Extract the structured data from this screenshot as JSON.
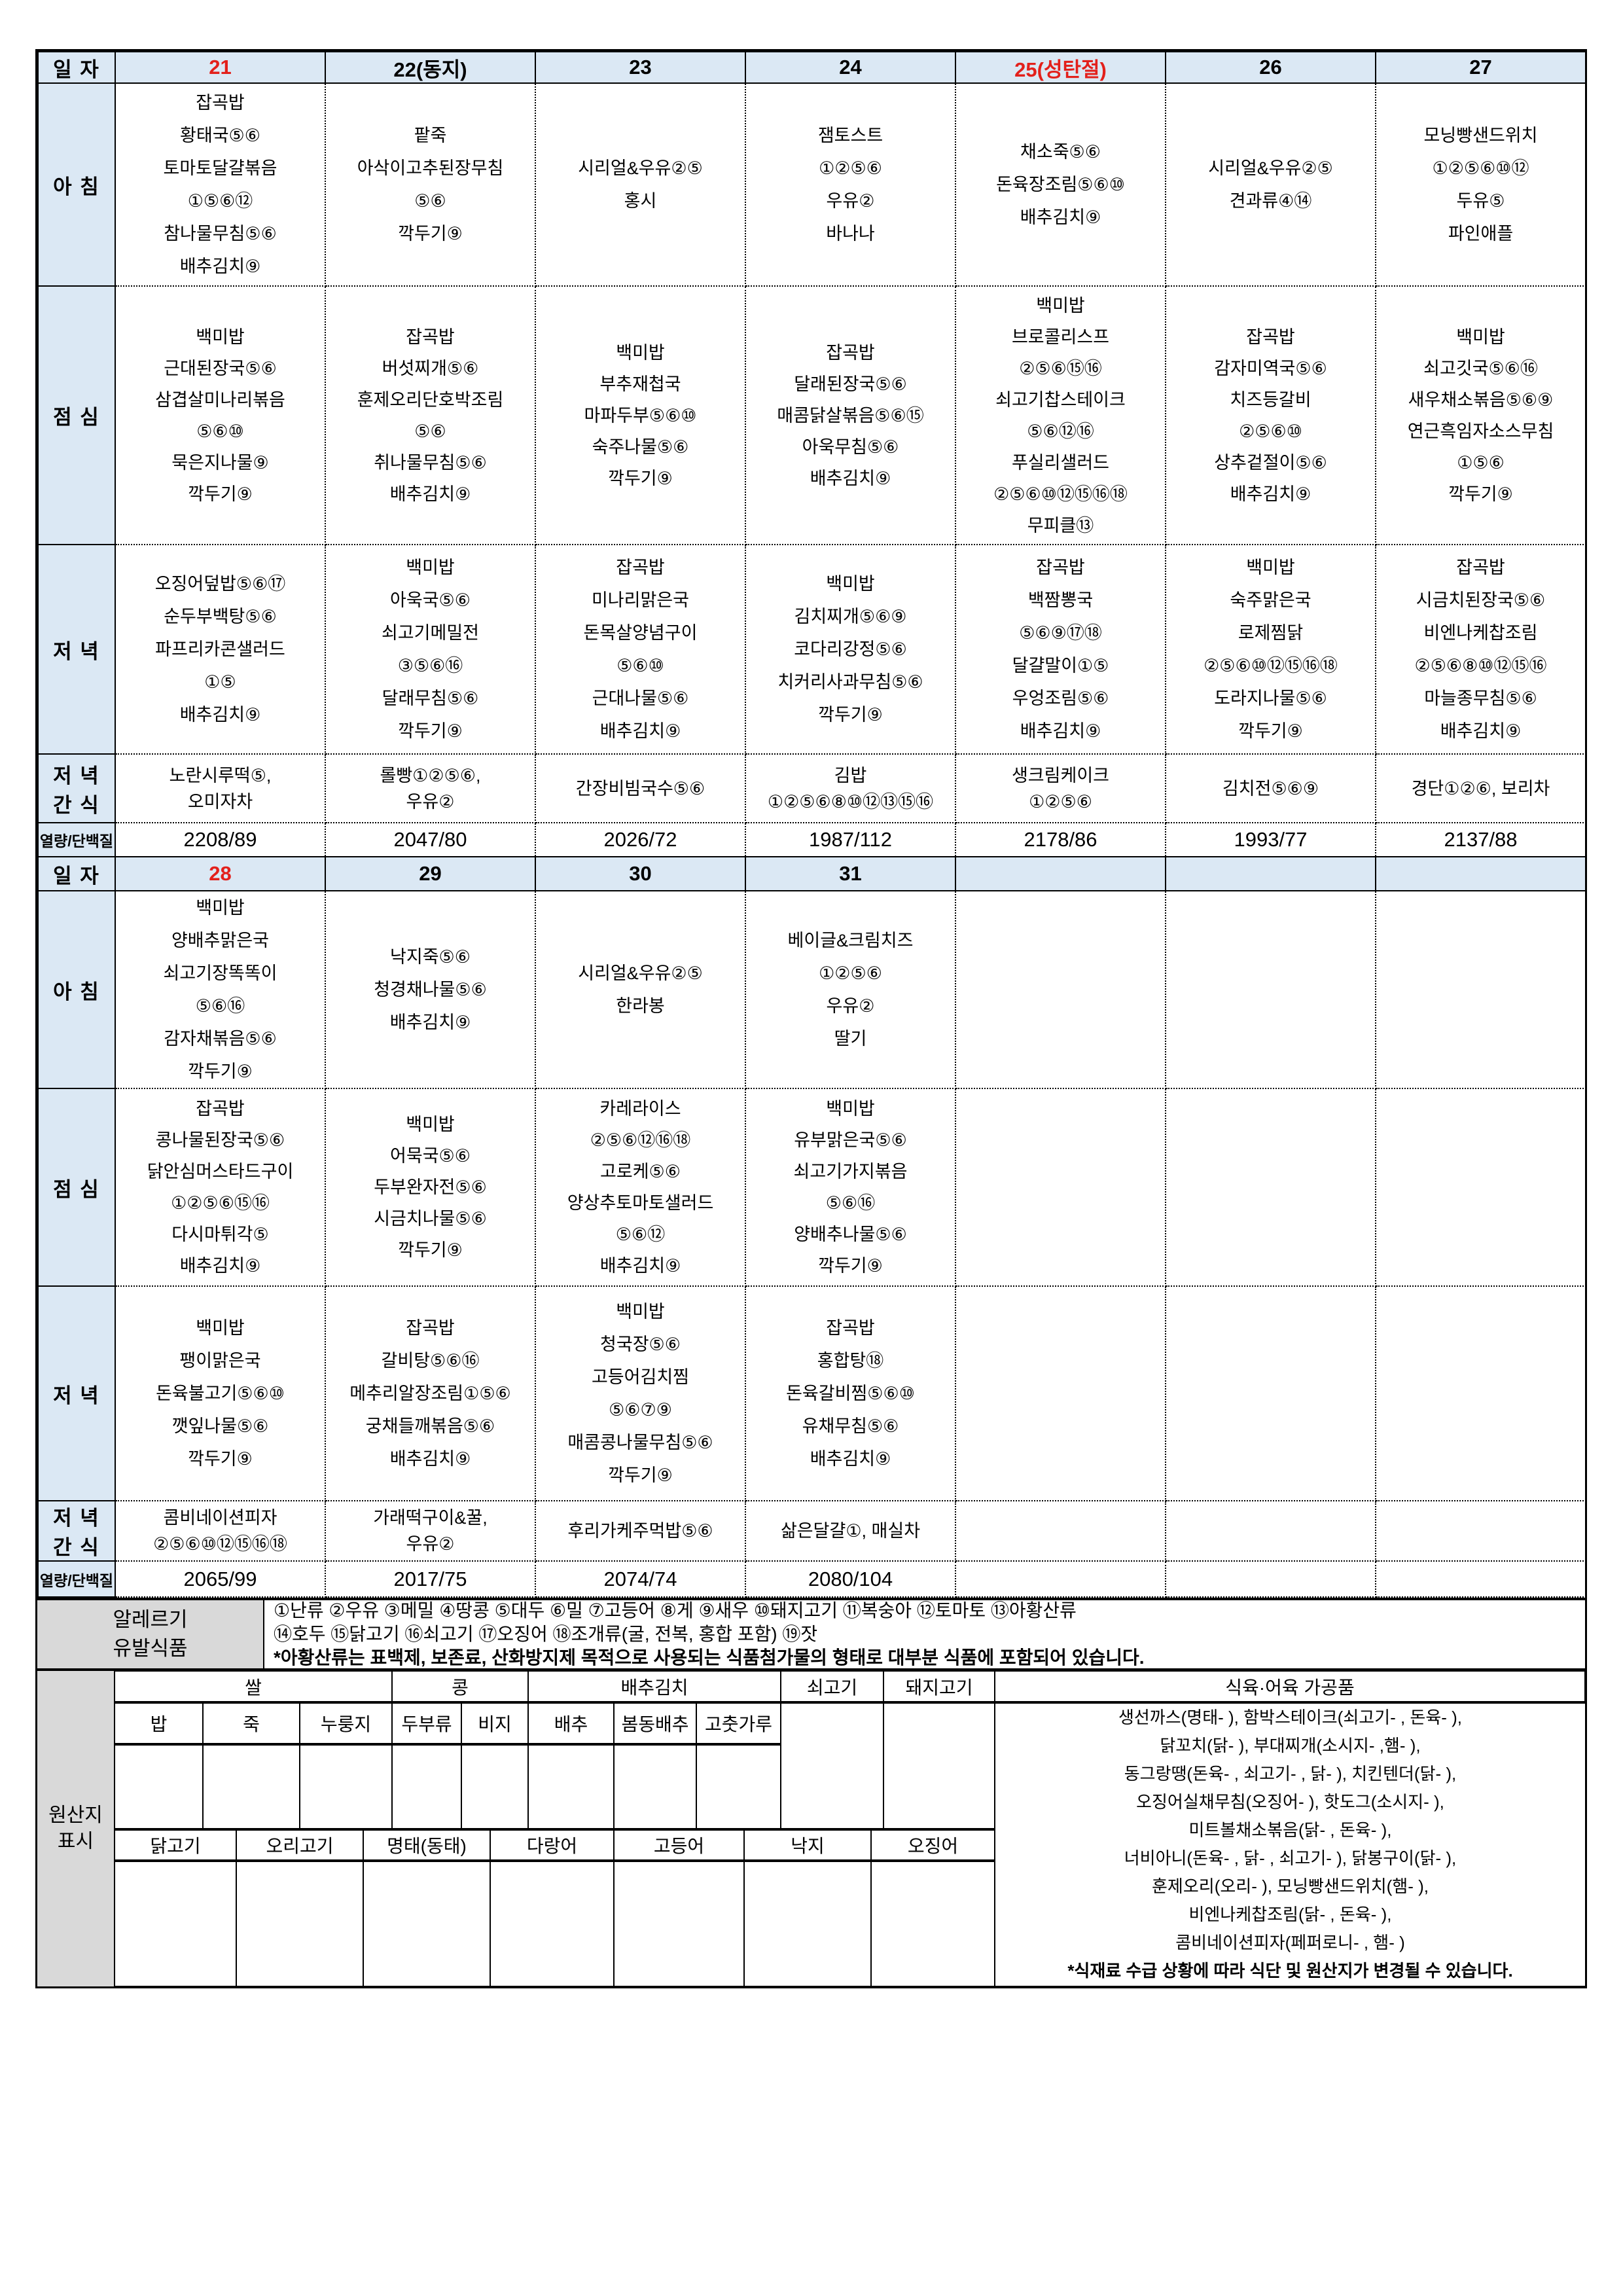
{
  "colors": {
    "header_blue": "#dbe8f4",
    "label_gray": "#d9d9d9",
    "accent_red": "#e3201b"
  },
  "row_labels": {
    "date": "일 자",
    "breakfast": "아 침",
    "lunch": "점 심",
    "dinner": "저 녁",
    "snack": [
      "저 녁",
      "간 식"
    ],
    "nutrition": "열량/단백질"
  },
  "weeks": [
    {
      "dates": [
        {
          "label": "21",
          "red": true
        },
        {
          "label": "22(동지)",
          "red": false
        },
        {
          "label": "23",
          "red": false
        },
        {
          "label": "24",
          "red": false
        },
        {
          "label": "25(성탄절)",
          "red": true
        },
        {
          "label": "26",
          "red": false
        },
        {
          "label": "27",
          "red": false
        }
      ],
      "breakfast": [
        [
          "잡곡밥",
          "황태국⑤⑥",
          "토마토달걀볶음",
          "①⑤⑥⑫",
          "참나물무침⑤⑥",
          "배추김치⑨"
        ],
        [
          "팥죽",
          "아삭이고추된장무침",
          "⑤⑥",
          "깍두기⑨"
        ],
        [
          "시리얼&우유②⑤",
          "홍시"
        ],
        [
          "잼토스트",
          "①②⑤⑥",
          "우유②",
          "바나나"
        ],
        [
          "채소죽⑤⑥",
          "돈육장조림⑤⑥⑩",
          "배추김치⑨"
        ],
        [
          "시리얼&우유②⑤",
          "견과류④⑭"
        ],
        [
          "모닝빵샌드위치",
          "①②⑤⑥⑩⑫",
          "두유⑤",
          "파인애플"
        ]
      ],
      "lunch": [
        [
          "백미밥",
          "근대된장국⑤⑥",
          "삼겹살미나리볶음",
          "⑤⑥⑩",
          "묵은지나물⑨",
          "깍두기⑨"
        ],
        [
          "잡곡밥",
          "버섯찌개⑤⑥",
          "훈제오리단호박조림",
          "⑤⑥",
          "취나물무침⑤⑥",
          "배추김치⑨"
        ],
        [
          "백미밥",
          "부추재첩국",
          "마파두부⑤⑥⑩",
          "숙주나물⑤⑥",
          "깍두기⑨"
        ],
        [
          "잡곡밥",
          "달래된장국⑤⑥",
          "매콤닭살볶음⑤⑥⑮",
          "아욱무침⑤⑥",
          "배추김치⑨"
        ],
        [
          "백미밥",
          "브로콜리스프",
          "②⑤⑥⑮⑯",
          "쇠고기찹스테이크",
          "⑤⑥⑫⑯",
          "푸실리샐러드",
          "②⑤⑥⑩⑫⑮⑯⑱",
          "무피클⑬"
        ],
        [
          "잡곡밥",
          "감자미역국⑤⑥",
          "치즈등갈비",
          "②⑤⑥⑩",
          "상추겉절이⑤⑥",
          "배추김치⑨"
        ],
        [
          "백미밥",
          "쇠고깃국⑤⑥⑯",
          "새우채소볶음⑤⑥⑨",
          "연근흑임자소스무침",
          "①⑤⑥",
          "깍두기⑨"
        ]
      ],
      "dinner": [
        [
          "오징어덮밥⑤⑥⑰",
          "순두부백탕⑤⑥",
          "파프리카콘샐러드",
          "①⑤",
          "배추김치⑨"
        ],
        [
          "백미밥",
          "아욱국⑤⑥",
          "쇠고기메밀전",
          "③⑤⑥⑯",
          "달래무침⑤⑥",
          "깍두기⑨"
        ],
        [
          "잡곡밥",
          "미나리맑은국",
          "돈목살양념구이",
          "⑤⑥⑩",
          "근대나물⑤⑥",
          "배추김치⑨"
        ],
        [
          "백미밥",
          "김치찌개⑤⑥⑨",
          "코다리강정⑤⑥",
          "치커리사과무침⑤⑥",
          "깍두기⑨"
        ],
        [
          "잡곡밥",
          "백짬뽕국",
          "⑤⑥⑨⑰⑱",
          "달걀말이①⑤",
          "우엉조림⑤⑥",
          "배추김치⑨"
        ],
        [
          "백미밥",
          "숙주맑은국",
          "로제찜닭",
          "②⑤⑥⑩⑫⑮⑯⑱",
          "도라지나물⑤⑥",
          "깍두기⑨"
        ],
        [
          "잡곡밥",
          "시금치된장국⑤⑥",
          "비엔나케찹조림",
          "②⑤⑥⑧⑩⑫⑮⑯",
          "마늘종무침⑤⑥",
          "배추김치⑨"
        ]
      ],
      "snack": [
        [
          "노란시루떡⑤,",
          "오미자차"
        ],
        [
          "롤빵①②⑤⑥,",
          "우유②"
        ],
        [
          "간장비빔국수⑤⑥"
        ],
        [
          "김밥",
          "①②⑤⑥⑧⑩⑫⑬⑮⑯"
        ],
        [
          "생크림케이크",
          "①②⑤⑥"
        ],
        [
          "김치전⑤⑥⑨"
        ],
        [
          "경단①②⑥, 보리차"
        ]
      ],
      "nutrition": [
        "2208/89",
        "2047/80",
        "2026/72",
        "1987/112",
        "2178/86",
        "1993/77",
        "2137/88"
      ]
    },
    {
      "dates": [
        {
          "label": "28",
          "red": true
        },
        {
          "label": "29",
          "red": false
        },
        {
          "label": "30",
          "red": false
        },
        {
          "label": "31",
          "red": false
        },
        {
          "label": "",
          "red": false
        },
        {
          "label": "",
          "red": false
        },
        {
          "label": "",
          "red": false
        }
      ],
      "breakfast": [
        [
          "백미밥",
          "양배추맑은국",
          "쇠고기장똑똑이",
          "⑤⑥⑯",
          "감자채볶음⑤⑥",
          "깍두기⑨"
        ],
        [
          "낙지죽⑤⑥",
          "청경채나물⑤⑥",
          "배추김치⑨"
        ],
        [
          "시리얼&우유②⑤",
          "한라봉"
        ],
        [
          "베이글&크림치즈",
          "①②⑤⑥",
          "우유②",
          "딸기"
        ],
        [],
        [],
        []
      ],
      "lunch": [
        [
          "잡곡밥",
          "콩나물된장국⑤⑥",
          "닭안심머스타드구이",
          "①②⑤⑥⑮⑯",
          "다시마튀각⑤",
          "배추김치⑨"
        ],
        [
          "백미밥",
          "어묵국⑤⑥",
          "두부완자전⑤⑥",
          "시금치나물⑤⑥",
          "깍두기⑨"
        ],
        [
          "카레라이스",
          "②⑤⑥⑫⑯⑱",
          "고로케⑤⑥",
          "양상추토마토샐러드",
          "⑤⑥⑫",
          "배추김치⑨"
        ],
        [
          "백미밥",
          "유부맑은국⑤⑥",
          "쇠고기가지볶음",
          "⑤⑥⑯",
          "양배추나물⑤⑥",
          "깍두기⑨"
        ],
        [],
        [],
        []
      ],
      "dinner": [
        [
          "백미밥",
          "팽이맑은국",
          "돈육불고기⑤⑥⑩",
          "깻잎나물⑤⑥",
          "깍두기⑨"
        ],
        [
          "잡곡밥",
          "갈비탕⑤⑥⑯",
          "메추리알장조림①⑤⑥",
          "궁채들깨볶음⑤⑥",
          "배추김치⑨"
        ],
        [
          "백미밥",
          "청국장⑤⑥",
          "고등어김치찜",
          "⑤⑥⑦⑨",
          "매콤콩나물무침⑤⑥",
          "깍두기⑨"
        ],
        [
          "잡곡밥",
          "홍합탕⑱",
          "돈육갈비찜⑤⑥⑩",
          "유채무침⑤⑥",
          "배추김치⑨"
        ],
        [],
        [],
        []
      ],
      "snack": [
        [
          "콤비네이션피자",
          "②⑤⑥⑩⑫⑮⑯⑱"
        ],
        [
          "가래떡구이&꿀,",
          "우유②"
        ],
        [
          "후리가케주먹밥⑤⑥"
        ],
        [
          "삶은달걀①, 매실차"
        ],
        [],
        [],
        []
      ],
      "nutrition": [
        "2065/99",
        "2017/75",
        "2074/74",
        "2080/104",
        "",
        "",
        ""
      ]
    }
  ],
  "allergy": {
    "label": [
      "알레르기",
      "유발식품"
    ],
    "line1": "①난류 ②우유 ③메밀 ④땅콩 ⑤대두 ⑥밀 ⑦고등어 ⑧게 ⑨새우 ⑩돼지고기 ⑪복숭아 ⑫토마토 ⑬아황산류",
    "line2": "⑭호두 ⑮닭고기 ⑯쇠고기 ⑰오징어 ⑱조개류(굴, 전복, 홍합 포함) ⑲잣",
    "note": "*아황산류는 표백제, 보존료, 산화방지제 목적으로 사용되는 식품첨가물의 형태로 대부분 식품에 포함되어 있습니다."
  },
  "origin": {
    "label": [
      "원산지",
      "표시"
    ],
    "group_headers": [
      "쌀",
      "콩",
      "배추김치",
      "쇠고기",
      "돼지고기",
      "식육·어육 가공품"
    ],
    "sub_headers": [
      "밥",
      "죽",
      "누룽지",
      "두부류",
      "비지",
      "배추",
      "봄동배추",
      "고춧가루"
    ],
    "fish_headers": [
      "닭고기",
      "오리고기",
      "명태(동태)",
      "다랑어",
      "고등어",
      "낙지",
      "오징어"
    ],
    "processed_lines": [
      "생선까스(명태-        ), 함박스테이크(쇠고기-      , 돈육-      ),",
      "닭꼬치(닭-        ), 부대찌개(소시지-      ,햄-      ),",
      "동그랑땡(돈육-    , 쇠고기-    , 닭-    ), 치킨텐더(닭-      ),",
      "오징어실채무침(오징어-       ), 핫도그(소시지-       ),",
      "미트볼채소볶음(닭-       , 돈육-      ),",
      "너비아니(돈육-      , 닭-      , 쇠고기-      ), 닭봉구이(닭-      ),",
      "훈제오리(오리-     ), 모닝빵샌드위치(햄-      ),",
      "비엔나케찹조림(닭-      , 돈육-     ),",
      "콤비네이션피자(페퍼로니-       , 햄-     )"
    ],
    "footnote": "*식재료 수급 상황에 따라 식단 및 원산지가 변경될 수 있습니다."
  }
}
